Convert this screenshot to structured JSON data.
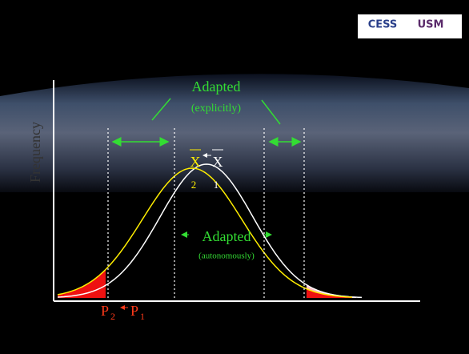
{
  "logos": [
    "CESS",
    "USM"
  ],
  "axis_label": "Frequency",
  "explicit": {
    "label": "Adapted",
    "note": "(explicitly)"
  },
  "means": {
    "symbol": "X",
    "subscripts": [
      "2",
      "1"
    ]
  },
  "autonomous": {
    "label": "Adapted",
    "note": "(autonomously)"
  },
  "percentiles": {
    "symbol": "P",
    "subscripts": [
      "2",
      "1"
    ]
  }
}
